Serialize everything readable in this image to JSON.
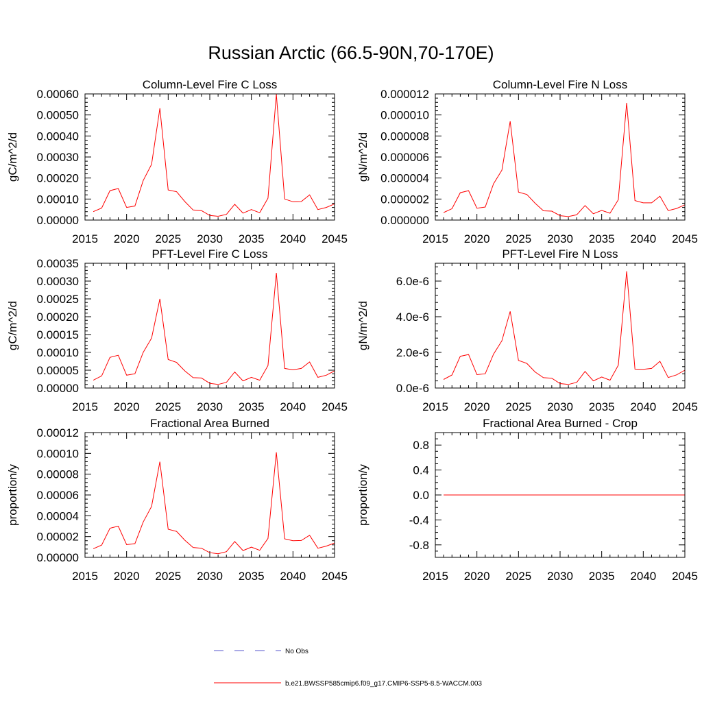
{
  "title": "Russian Arctic (66.5-90N,70-170E)",
  "chart_data": [
    {
      "type": "line",
      "title": "Column-Level Fire C Loss",
      "xlabel": "",
      "ylabel": "gC/m^2/d",
      "xlim": [
        2015,
        2045
      ],
      "ylim": [
        0,
        0.0006
      ],
      "xticks": [
        2015,
        2020,
        2025,
        2030,
        2035,
        2040,
        2045
      ],
      "xtick_labels": [
        "2015",
        "2020",
        "2025",
        "2030",
        "2035",
        "2040",
        "2045"
      ],
      "yticks": [
        0,
        0.0001,
        0.0002,
        0.0003,
        0.0004,
        0.0005,
        0.0006
      ],
      "ytick_labels": [
        "0.00000",
        "0.00010",
        "0.00020",
        "0.00030",
        "0.00040",
        "0.00050",
        "0.00060"
      ],
      "x": [
        2016,
        2017,
        2018,
        2019,
        2020,
        2021,
        2022,
        2023,
        2024,
        2025,
        2026,
        2027,
        2028,
        2029,
        2030,
        2031,
        2032,
        2033,
        2034,
        2035,
        2036,
        2037,
        2038,
        2039,
        2040,
        2041,
        2042,
        2043,
        2044,
        2045
      ],
      "series": [
        {
          "color": "#ff0000",
          "values": [
            4e-05,
            5.7e-05,
            0.00014,
            0.00015,
            6e-05,
            6.7e-05,
            0.000188,
            0.000265,
            0.000532,
            0.000143,
            0.000135,
            8.8e-05,
            4.8e-05,
            4.5e-05,
            2.2e-05,
            1.8e-05,
            2.7e-05,
            7.5e-05,
            3.3e-05,
            5e-05,
            3.5e-05,
            0.000104,
            0.000598,
            0.0001,
            8.7e-05,
            8.8e-05,
            0.00012,
            5e-05,
            6e-05,
            7.7e-05
          ]
        }
      ]
    },
    {
      "type": "line",
      "title": "Column-Level Fire N Loss",
      "xlabel": "",
      "ylabel": "gN/m^2/d",
      "xlim": [
        2015,
        2045
      ],
      "ylim": [
        0,
        1.2e-05
      ],
      "xticks": [
        2015,
        2020,
        2025,
        2030,
        2035,
        2040,
        2045
      ],
      "xtick_labels": [
        "2015",
        "2020",
        "2025",
        "2030",
        "2035",
        "2040",
        "2045"
      ],
      "yticks": [
        0,
        2e-06,
        4e-06,
        6e-06,
        8e-06,
        1e-05,
        1.2e-05
      ],
      "ytick_labels": [
        "0.000000",
        "0.000002",
        "0.000004",
        "0.000006",
        "0.000008",
        "0.000010",
        "0.000012"
      ],
      "x": [
        2016,
        2017,
        2018,
        2019,
        2020,
        2021,
        2022,
        2023,
        2024,
        2025,
        2026,
        2027,
        2028,
        2029,
        2030,
        2031,
        2032,
        2033,
        2034,
        2035,
        2036,
        2037,
        2038,
        2039,
        2040,
        2041,
        2042,
        2043,
        2044,
        2045
      ],
      "series": [
        {
          "color": "#ff0000",
          "values": [
            7.2e-07,
            1.08e-06,
            2.6e-06,
            2.8e-06,
            1.13e-06,
            1.24e-06,
            3.45e-06,
            4.75e-06,
            9.4e-06,
            2.66e-06,
            2.43e-06,
            1.6e-06,
            8.8e-07,
            8.5e-07,
            4.2e-07,
            3.3e-07,
            5e-07,
            1.38e-06,
            6e-07,
            9.2e-07,
            6.5e-07,
            1.93e-06,
            1.115e-05,
            1.85e-06,
            1.64e-06,
            1.64e-06,
            2.27e-06,
            9e-07,
            1.1e-06,
            1.45e-06
          ]
        }
      ]
    },
    {
      "type": "line",
      "title": "PFT-Level Fire C Loss",
      "xlabel": "",
      "ylabel": "gC/m^2/d",
      "xlim": [
        2015,
        2045
      ],
      "ylim": [
        0,
        0.00035
      ],
      "xticks": [
        2015,
        2020,
        2025,
        2030,
        2035,
        2040,
        2045
      ],
      "xtick_labels": [
        "2015",
        "2020",
        "2025",
        "2030",
        "2035",
        "2040",
        "2045"
      ],
      "yticks": [
        0,
        5e-05,
        0.0001,
        0.00015,
        0.0002,
        0.00025,
        0.0003,
        0.00035
      ],
      "ytick_labels": [
        "0.00000",
        "0.00005",
        "0.00010",
        "0.00015",
        "0.00020",
        "0.00025",
        "0.00030",
        "0.00035"
      ],
      "x": [
        2016,
        2017,
        2018,
        2019,
        2020,
        2021,
        2022,
        2023,
        2024,
        2025,
        2026,
        2027,
        2028,
        2029,
        2030,
        2031,
        2032,
        2033,
        2034,
        2035,
        2036,
        2037,
        2038,
        2039,
        2040,
        2041,
        2042,
        2043,
        2044,
        2045
      ],
      "series": [
        {
          "color": "#ff0000",
          "values": [
            2.2e-05,
            3.4e-05,
            8.6e-05,
            9.2e-05,
            3.6e-05,
            4e-05,
            0.0001,
            0.00014,
            0.00025,
            8e-05,
            7.2e-05,
            4.8e-05,
            2.9e-05,
            2.8e-05,
            1.3e-05,
            1e-05,
            1.6e-05,
            4.5e-05,
            2e-05,
            3e-05,
            2.2e-05,
            6.3e-05,
            0.000323,
            5.5e-05,
            5.1e-05,
            5.5e-05,
            7.3e-05,
            3e-05,
            3.6e-05,
            4.8e-05
          ]
        }
      ]
    },
    {
      "type": "line",
      "title": "PFT-Level Fire N Loss",
      "xlabel": "",
      "ylabel": "gN/m^2/d",
      "xlim": [
        2015,
        2045
      ],
      "ylim": [
        0,
        7e-06
      ],
      "xticks": [
        2015,
        2020,
        2025,
        2030,
        2035,
        2040,
        2045
      ],
      "xtick_labels": [
        "2015",
        "2020",
        "2025",
        "2030",
        "2035",
        "2040",
        "2045"
      ],
      "yticks": [
        0,
        2e-06,
        4e-06,
        6e-06
      ],
      "ytick_labels": [
        "0.0e-6",
        "2.0e-6",
        "4.0e-6",
        "6.0e-6"
      ],
      "x": [
        2016,
        2017,
        2018,
        2019,
        2020,
        2021,
        2022,
        2023,
        2024,
        2025,
        2026,
        2027,
        2028,
        2029,
        2030,
        2031,
        2032,
        2033,
        2034,
        2035,
        2036,
        2037,
        2038,
        2039,
        2040,
        2041,
        2042,
        2043,
        2044,
        2045
      ],
      "series": [
        {
          "color": "#ff0000",
          "values": [
            4.8e-07,
            7.3e-07,
            1.78e-06,
            1.88e-06,
            7.5e-07,
            8e-07,
            1.9e-06,
            2.65e-06,
            4.3e-06,
            1.55e-06,
            1.38e-06,
            9e-07,
            5.8e-07,
            5.5e-07,
            2.5e-07,
            2e-07,
            3.2e-07,
            9.3e-07,
            4e-07,
            6.2e-07,
            4.4e-07,
            1.28e-06,
            6.55e-06,
            1.06e-06,
            1.05e-06,
            1.1e-06,
            1.5e-06,
            5.9e-07,
            7.4e-07,
            1e-06
          ]
        }
      ]
    },
    {
      "type": "line",
      "title": "Fractional Area Burned",
      "xlabel": "",
      "ylabel": "proportion/y",
      "xlim": [
        2015,
        2045
      ],
      "ylim": [
        0,
        0.00012
      ],
      "xticks": [
        2015,
        2020,
        2025,
        2030,
        2035,
        2040,
        2045
      ],
      "xtick_labels": [
        "2015",
        "2020",
        "2025",
        "2030",
        "2035",
        "2040",
        "2045"
      ],
      "yticks": [
        0,
        2e-05,
        4e-05,
        6e-05,
        8e-05,
        0.0001,
        0.00012
      ],
      "ytick_labels": [
        "0.00000",
        "0.00002",
        "0.00004",
        "0.00006",
        "0.00008",
        "0.00010",
        "0.00012"
      ],
      "x": [
        2016,
        2017,
        2018,
        2019,
        2020,
        2021,
        2022,
        2023,
        2024,
        2025,
        2026,
        2027,
        2028,
        2029,
        2030,
        2031,
        2032,
        2033,
        2034,
        2035,
        2036,
        2037,
        2038,
        2039,
        2040,
        2041,
        2042,
        2043,
        2044,
        2045
      ],
      "series": [
        {
          "color": "#ff0000",
          "values": [
            8.3e-06,
            1.18e-05,
            2.8e-05,
            3e-05,
            1.22e-05,
            1.32e-05,
            3.4e-05,
            4.9e-05,
            9.2e-05,
            2.7e-05,
            2.5e-05,
            1.65e-05,
            9.5e-06,
            8.8e-06,
            4.5e-06,
            3.5e-06,
            5.5e-06,
            1.52e-05,
            6.5e-06,
            9.8e-06,
            6.8e-06,
            1.82e-05,
            0.000101,
            1.78e-05,
            1.6e-05,
            1.62e-05,
            2.12e-05,
            8.8e-06,
            1.08e-05,
            1.38e-05
          ]
        }
      ]
    },
    {
      "type": "line",
      "title": "Fractional Area Burned - Crop",
      "xlabel": "",
      "ylabel": "proportion/y",
      "xlim": [
        2015,
        2045
      ],
      "ylim": [
        -1,
        1
      ],
      "xticks": [
        2015,
        2020,
        2025,
        2030,
        2035,
        2040,
        2045
      ],
      "xtick_labels": [
        "2015",
        "2020",
        "2025",
        "2030",
        "2035",
        "2040",
        "2045"
      ],
      "yticks": [
        -0.8,
        -0.4,
        0,
        0.4,
        0.8
      ],
      "ytick_labels": [
        "-0.8",
        "-0.4",
        "0.0",
        "0.4",
        "0.8"
      ],
      "x": [
        2016,
        2017,
        2018,
        2019,
        2020,
        2021,
        2022,
        2023,
        2024,
        2025,
        2026,
        2027,
        2028,
        2029,
        2030,
        2031,
        2032,
        2033,
        2034,
        2035,
        2036,
        2037,
        2038,
        2039,
        2040,
        2041,
        2042,
        2043,
        2044,
        2045
      ],
      "series": [
        {
          "color": "#ff0000",
          "values": [
            0,
            0,
            0,
            0,
            0,
            0,
            0,
            0,
            0,
            0,
            0,
            0,
            0,
            0,
            0,
            0,
            0,
            0,
            0,
            0,
            0,
            0,
            0,
            0,
            0,
            0,
            0,
            0,
            0,
            0
          ]
        }
      ]
    }
  ],
  "legend": [
    {
      "label": "No Obs",
      "color": "#5555cc",
      "style": "dashed"
    },
    {
      "label": "b.e21.BWSSP585cmip6.f09_g17.CMIP6-SSP5-8.5-WACCM.003",
      "color": "#ff0000",
      "style": "solid"
    }
  ]
}
